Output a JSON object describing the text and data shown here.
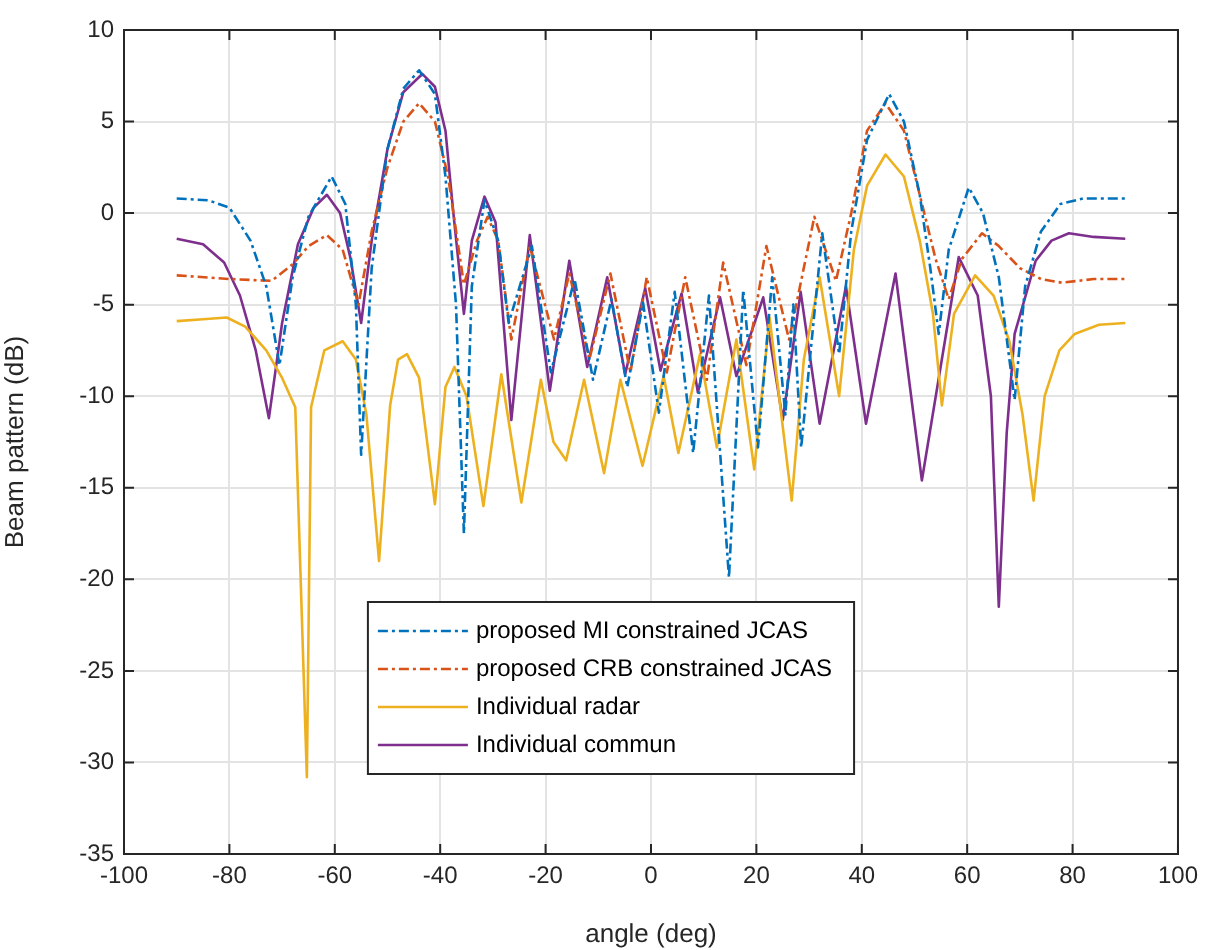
{
  "chart_data": {
    "type": "line",
    "xlabel": "angle (deg)",
    "ylabel": "Beam pattern (dB)",
    "xlim": [
      -100,
      100
    ],
    "xticks": [
      -100,
      -80,
      -60,
      -40,
      -20,
      0,
      20,
      40,
      60,
      80,
      100
    ],
    "ylim": [
      -35,
      10
    ],
    "yticks": [
      -35,
      -30,
      -25,
      -20,
      -15,
      -10,
      -5,
      0,
      5,
      10
    ],
    "grid": true,
    "legend": "bottom",
    "marker": "none",
    "series": [
      {
        "name": "proposed MI constrained JCAS",
        "color": "#0072bd",
        "line_style": "dashed",
        "x": [
          -90,
          -84,
          -80,
          -76,
          -73,
          -70.5,
          -68,
          -65,
          -60.6,
          -58,
          -56,
          -55,
          -53,
          -50,
          -47,
          -44,
          -41,
          -39,
          -37,
          -35.5,
          -34,
          -31.6,
          -29,
          -27,
          -22.6,
          -19,
          -14.5,
          -11,
          -7.5,
          -4.5,
          -1.5,
          1.5,
          4.5,
          8,
          11,
          14.8,
          17.5,
          20.3,
          23,
          25.5,
          27,
          28.5,
          32.5,
          35.7,
          38,
          41,
          45.2,
          48,
          51,
          53,
          54.6,
          56.5,
          60.3,
          63,
          66,
          69,
          71,
          74,
          77.7,
          82,
          90
        ],
        "values": [
          0.8,
          0.7,
          0.3,
          -1.5,
          -4,
          -8.3,
          -3.5,
          -0.2,
          2,
          0.5,
          -5,
          -13.2,
          -3,
          3.5,
          6.8,
          7.8,
          6.5,
          2,
          -5,
          -17.5,
          -4,
          0.7,
          -1.5,
          -6,
          -1.8,
          -8.7,
          -3.6,
          -9.1,
          -4.7,
          -9.5,
          -4.9,
          -10.9,
          -4.3,
          -13.1,
          -4.5,
          -19.9,
          -4.2,
          -12.8,
          -3.5,
          -11,
          -5,
          -12.8,
          -1.1,
          -7.7,
          -1,
          4,
          6.5,
          5,
          1,
          -3,
          -6.6,
          -2,
          1.4,
          0,
          -3.5,
          -10.2,
          -4,
          -1,
          0.5,
          0.8,
          0.8
        ]
      },
      {
        "name": "proposed CRB constrained JCAS",
        "color": "#d95319",
        "line_style": "dashed",
        "x": [
          -90,
          -80,
          -72,
          -68,
          -65,
          -61.5,
          -58.5,
          -55.5,
          -53,
          -50,
          -47,
          -44,
          -41,
          -38.5,
          -35.5,
          -33,
          -31,
          -29,
          -26.5,
          -23,
          -18.4,
          -15.5,
          -11.7,
          -7.7,
          -3.9,
          -0.8,
          3,
          6.5,
          10.6,
          13.7,
          18.1,
          21.9,
          26.2,
          31,
          35.1,
          38,
          41,
          44.5,
          48,
          51,
          54,
          56.5,
          59,
          62.8,
          66,
          70,
          74,
          78,
          84,
          90
        ],
        "values": [
          -3.4,
          -3.6,
          -3.7,
          -2.8,
          -1.8,
          -1.2,
          -2,
          -5,
          -1,
          2.5,
          5,
          6,
          5,
          2,
          -3.9,
          -1.5,
          -0.2,
          -1.5,
          -6.9,
          -1.8,
          -6.9,
          -3.3,
          -8,
          -3.3,
          -8.7,
          -3.5,
          -8.7,
          -3.5,
          -9.1,
          -2.7,
          -8.3,
          -1.8,
          -6.9,
          -0.2,
          -3.7,
          0,
          4.5,
          6,
          4.5,
          1,
          -2.5,
          -4.7,
          -2.5,
          -1.1,
          -1.8,
          -3,
          -3.6,
          -3.8,
          -3.6,
          -3.6
        ]
      },
      {
        "name": "Individual radar",
        "color": "#edb120",
        "line_style": "solid",
        "x": [
          -90,
          -85,
          -80.5,
          -77,
          -73,
          -70,
          -67.5,
          -65.3,
          -64.5,
          -62,
          -58.5,
          -56,
          -54,
          -51.6,
          -49.5,
          -48,
          -46.3,
          -44,
          -41,
          -39,
          -37.3,
          -35,
          -31.8,
          -28.4,
          -24.6,
          -20.9,
          -18.5,
          -16.1,
          -12.7,
          -8.9,
          -5.8,
          -1.6,
          2.4,
          5.2,
          9.3,
          12.5,
          16.2,
          19.6,
          22.5,
          26.7,
          29,
          32,
          35.7,
          38.5,
          41,
          44.5,
          48,
          51,
          53.5,
          55.2,
          57.5,
          61.5,
          65,
          68,
          70.5,
          72.6,
          74.7,
          77.5,
          80.4,
          85,
          90
        ],
        "values": [
          -5.9,
          -5.8,
          -5.7,
          -6.2,
          -7.5,
          -9,
          -10.6,
          -30.8,
          -10.6,
          -7.5,
          -7,
          -8,
          -11,
          -19,
          -10.5,
          -8,
          -7.7,
          -9,
          -15.9,
          -9.5,
          -8.4,
          -10,
          -16,
          -8.8,
          -15.8,
          -9.1,
          -12.5,
          -13.5,
          -9.1,
          -14.2,
          -9.1,
          -13.8,
          -8.9,
          -13.1,
          -7.7,
          -12.8,
          -6.9,
          -14,
          -5.7,
          -15.7,
          -8,
          -3.5,
          -10,
          -2,
          1.5,
          3.2,
          2,
          -1.5,
          -5.5,
          -10.5,
          -5.5,
          -3.4,
          -4.5,
          -7,
          -11,
          -15.7,
          -10,
          -7.5,
          -6.6,
          -6.1,
          -6
        ]
      },
      {
        "name": "Individual commun",
        "color": "#7e2f8e",
        "line_style": "solid",
        "x": [
          -90,
          -85,
          -81,
          -78,
          -75,
          -72.5,
          -70,
          -67,
          -64,
          -61.5,
          -59,
          -57,
          -55,
          -53,
          -50,
          -47,
          -43.4,
          -41,
          -39,
          -37.5,
          -35.5,
          -34,
          -31.6,
          -29.5,
          -26.5,
          -23,
          -19.2,
          -15.5,
          -12.1,
          -8.3,
          -4.9,
          -1.1,
          1.8,
          5.8,
          8.9,
          13.1,
          16.2,
          21.3,
          25,
          28.4,
          32,
          37,
          40.8,
          46.4,
          51.4,
          58.4,
          62,
          64.5,
          66,
          67.5,
          69,
          73,
          76,
          79.3,
          84,
          90
        ],
        "values": [
          -1.4,
          -1.7,
          -2.7,
          -4.5,
          -7.5,
          -11.2,
          -6,
          -1.7,
          0.3,
          1,
          0,
          -2.5,
          -6,
          -1.5,
          3.5,
          6.6,
          7.6,
          6.9,
          4.5,
          0,
          -5.5,
          -1.5,
          0.9,
          -0.5,
          -11.3,
          -1.2,
          -9.7,
          -2.6,
          -8.4,
          -3.5,
          -8.8,
          -4.1,
          -8.6,
          -4.4,
          -9.8,
          -4.6,
          -8.9,
          -4.6,
          -11.3,
          -4.3,
          -11.5,
          -4,
          -11.5,
          -3.3,
          -14.6,
          -2.4,
          -4.5,
          -10,
          -21.5,
          -12,
          -6.6,
          -2.6,
          -1.5,
          -1.1,
          -1.3,
          -1.4
        ]
      }
    ]
  }
}
